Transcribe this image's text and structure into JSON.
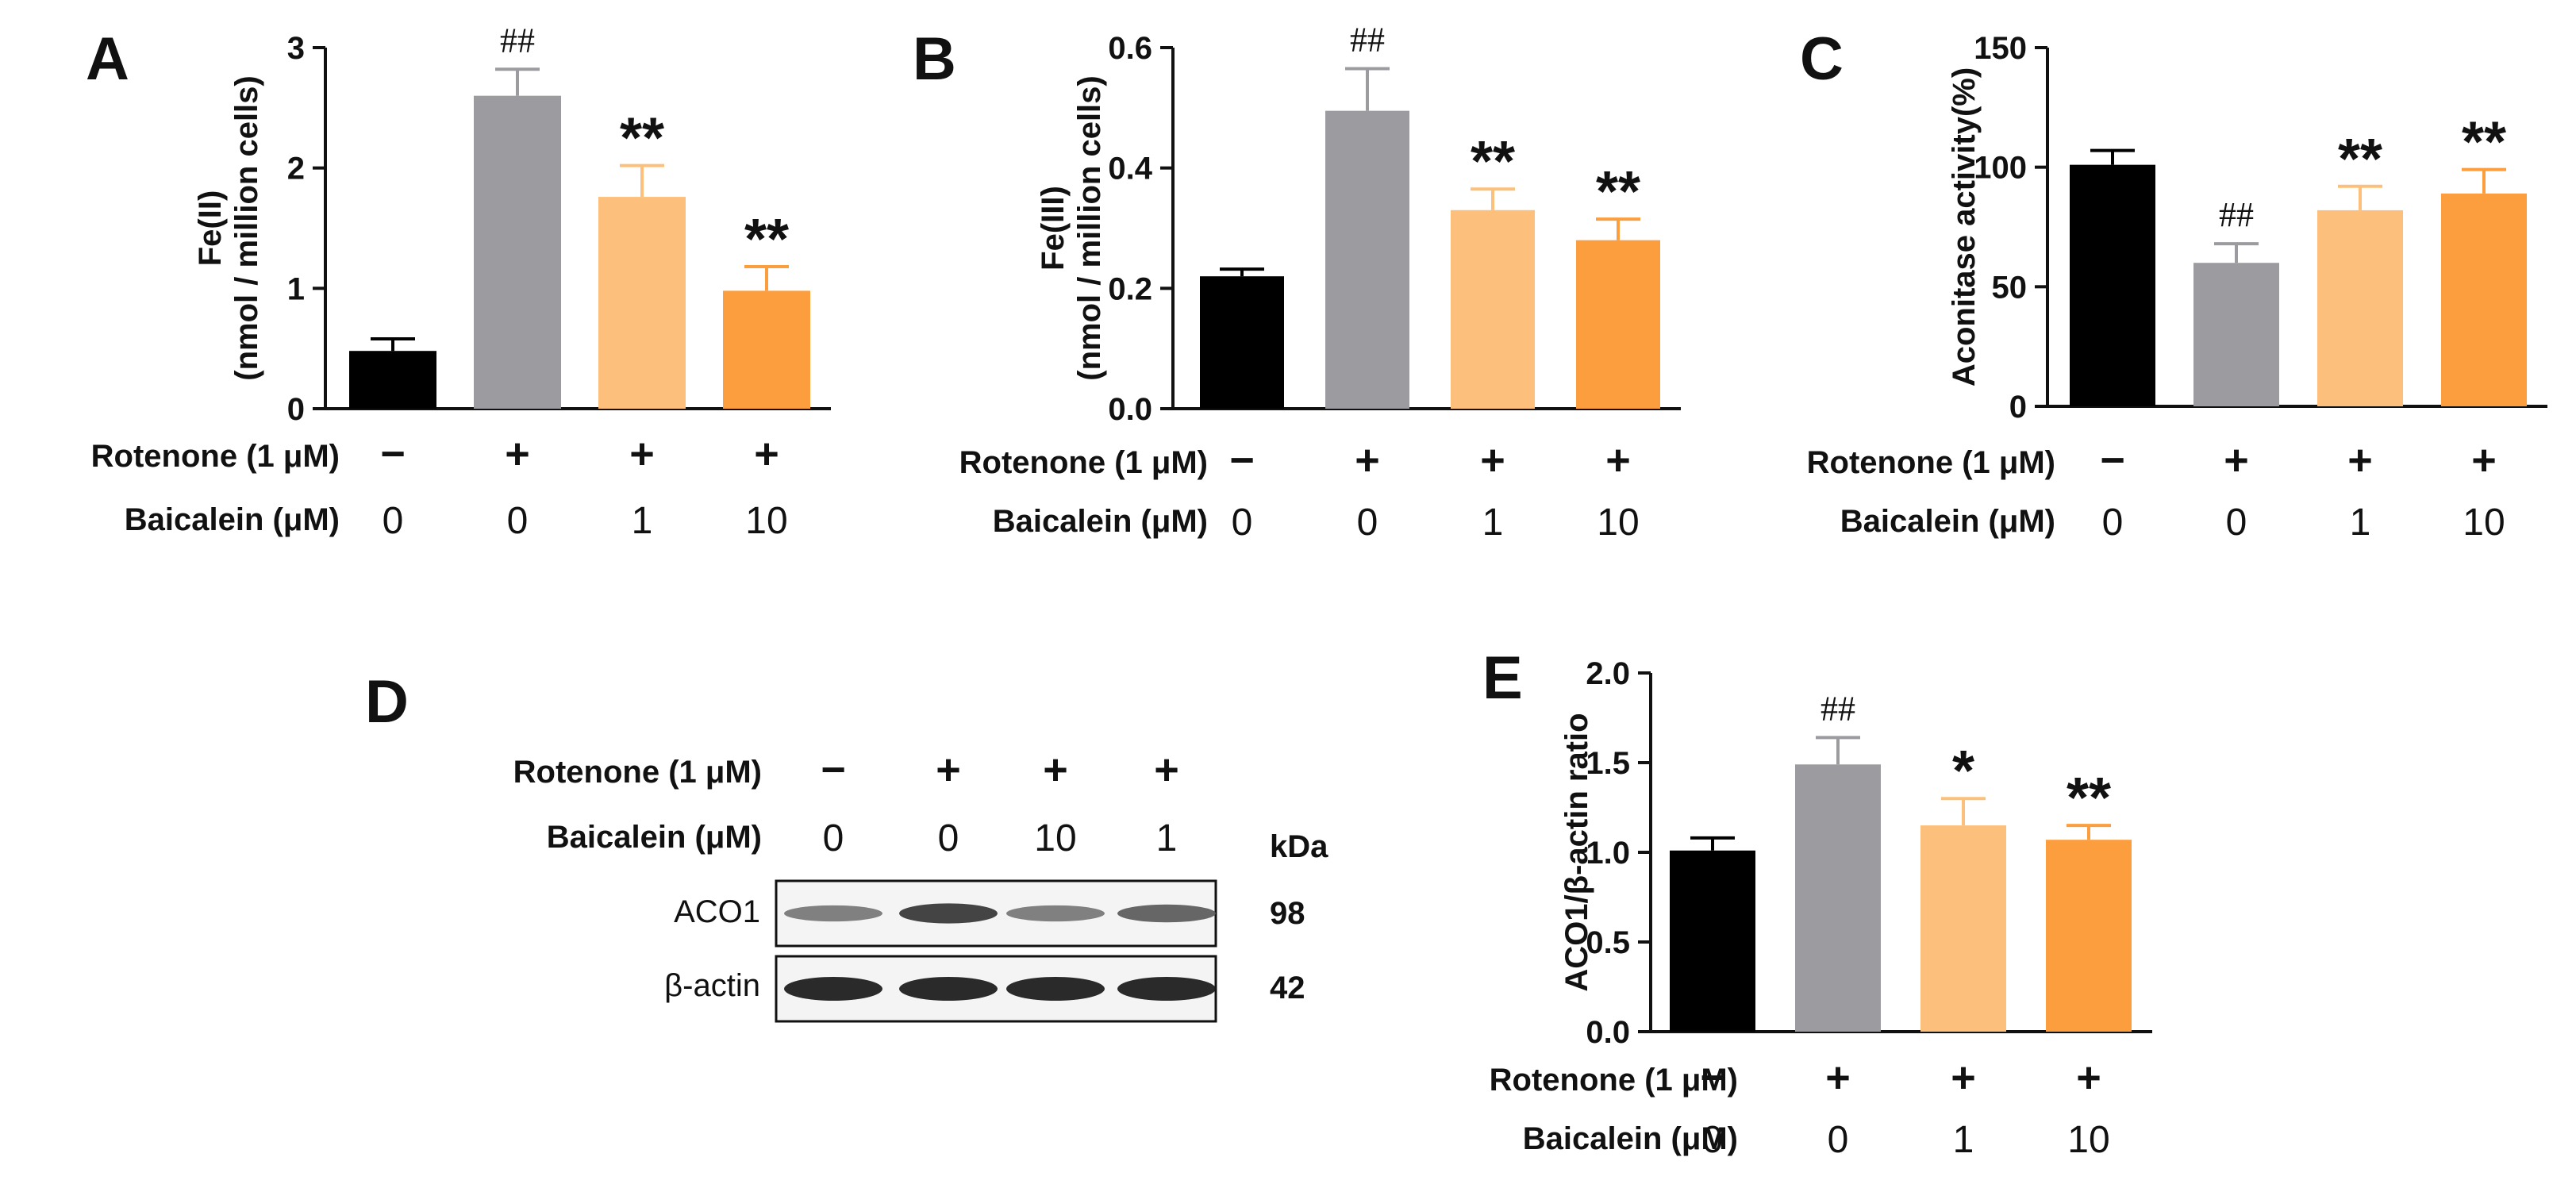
{
  "condition_labels": {
    "rotenone": "Rotenone (1 μM)",
    "baicalein": "Baicalein (μM)"
  },
  "colors": {
    "control": "#000000",
    "rotenone": "#9c9ca0",
    "baicalein_1": "#fdc07c",
    "baicalein_10": "#fd9e3e"
  },
  "chart_data": [
    {
      "panel": "A",
      "type": "bar",
      "ylabel_lines": [
        "Fe(II)",
        "(nmol / million cells)"
      ],
      "ylim": [
        0,
        3
      ],
      "yticks": [
        0,
        1,
        2,
        3
      ],
      "ytick_labels": [
        "0",
        "1",
        "2",
        "3"
      ],
      "values": [
        0.48,
        2.6,
        1.76,
        0.98
      ],
      "errors": [
        0.1,
        0.22,
        0.26,
        0.2
      ],
      "significance": [
        "",
        "##",
        "**",
        "**"
      ],
      "rotenone": [
        "−",
        "+",
        "+",
        "+"
      ],
      "baicalein": [
        "0",
        "0",
        "1",
        "10"
      ]
    },
    {
      "panel": "B",
      "type": "bar",
      "ylabel_lines": [
        "Fe(III)",
        "(nmol / million cells)"
      ],
      "ylim": [
        0,
        0.6
      ],
      "yticks": [
        0,
        0.2,
        0.4,
        0.6
      ],
      "ytick_labels": [
        "0.0",
        "0.2",
        "0.4",
        "0.6"
      ],
      "values": [
        0.22,
        0.495,
        0.33,
        0.28
      ],
      "errors": [
        0.012,
        0.07,
        0.035,
        0.035
      ],
      "significance": [
        "",
        "##",
        "**",
        "**"
      ],
      "rotenone": [
        "−",
        "+",
        "+",
        "+"
      ],
      "baicalein": [
        "0",
        "0",
        "1",
        "10"
      ]
    },
    {
      "panel": "C",
      "type": "bar",
      "ylabel_lines": [
        "Aconitase activity(%)"
      ],
      "ylim": [
        0,
        150
      ],
      "yticks": [
        0,
        50,
        100,
        150
      ],
      "ytick_labels": [
        "0",
        "50",
        "100",
        "150"
      ],
      "values": [
        101,
        60,
        82,
        89
      ],
      "errors": [
        6,
        8,
        10,
        10
      ],
      "significance": [
        "",
        "##",
        "**",
        "**"
      ],
      "rotenone": [
        "−",
        "+",
        "+",
        "+"
      ],
      "baicalein": [
        "0",
        "0",
        "1",
        "10"
      ]
    },
    {
      "panel": "E",
      "type": "bar",
      "ylabel_lines": [
        "ACO1/β-actin ratio"
      ],
      "ylim": [
        0,
        2.0
      ],
      "yticks": [
        0,
        0.5,
        1.0,
        1.5,
        2.0
      ],
      "ytick_labels": [
        "0.0",
        "0.5",
        "1.0",
        "1.5",
        "2.0"
      ],
      "values": [
        1.01,
        1.49,
        1.15,
        1.07
      ],
      "errors": [
        0.07,
        0.15,
        0.15,
        0.08
      ],
      "significance": [
        "",
        "##",
        "*",
        "**"
      ],
      "rotenone": [
        "−",
        "+",
        "+",
        "+"
      ],
      "baicalein": [
        "0",
        "0",
        "1",
        "10"
      ]
    }
  ],
  "blot": {
    "panel": "D",
    "rotenone": [
      "−",
      "+",
      "+",
      "+"
    ],
    "baicalein": [
      "0",
      "0",
      "10",
      "1"
    ],
    "unit": "kDa",
    "bands": [
      {
        "label": "ACO1",
        "kda": "98",
        "intensity": [
          0.45,
          0.8,
          0.45,
          0.6
        ]
      },
      {
        "label": "β-actin",
        "kda": "42",
        "intensity": [
          0.95,
          0.95,
          0.95,
          0.95
        ]
      }
    ]
  }
}
